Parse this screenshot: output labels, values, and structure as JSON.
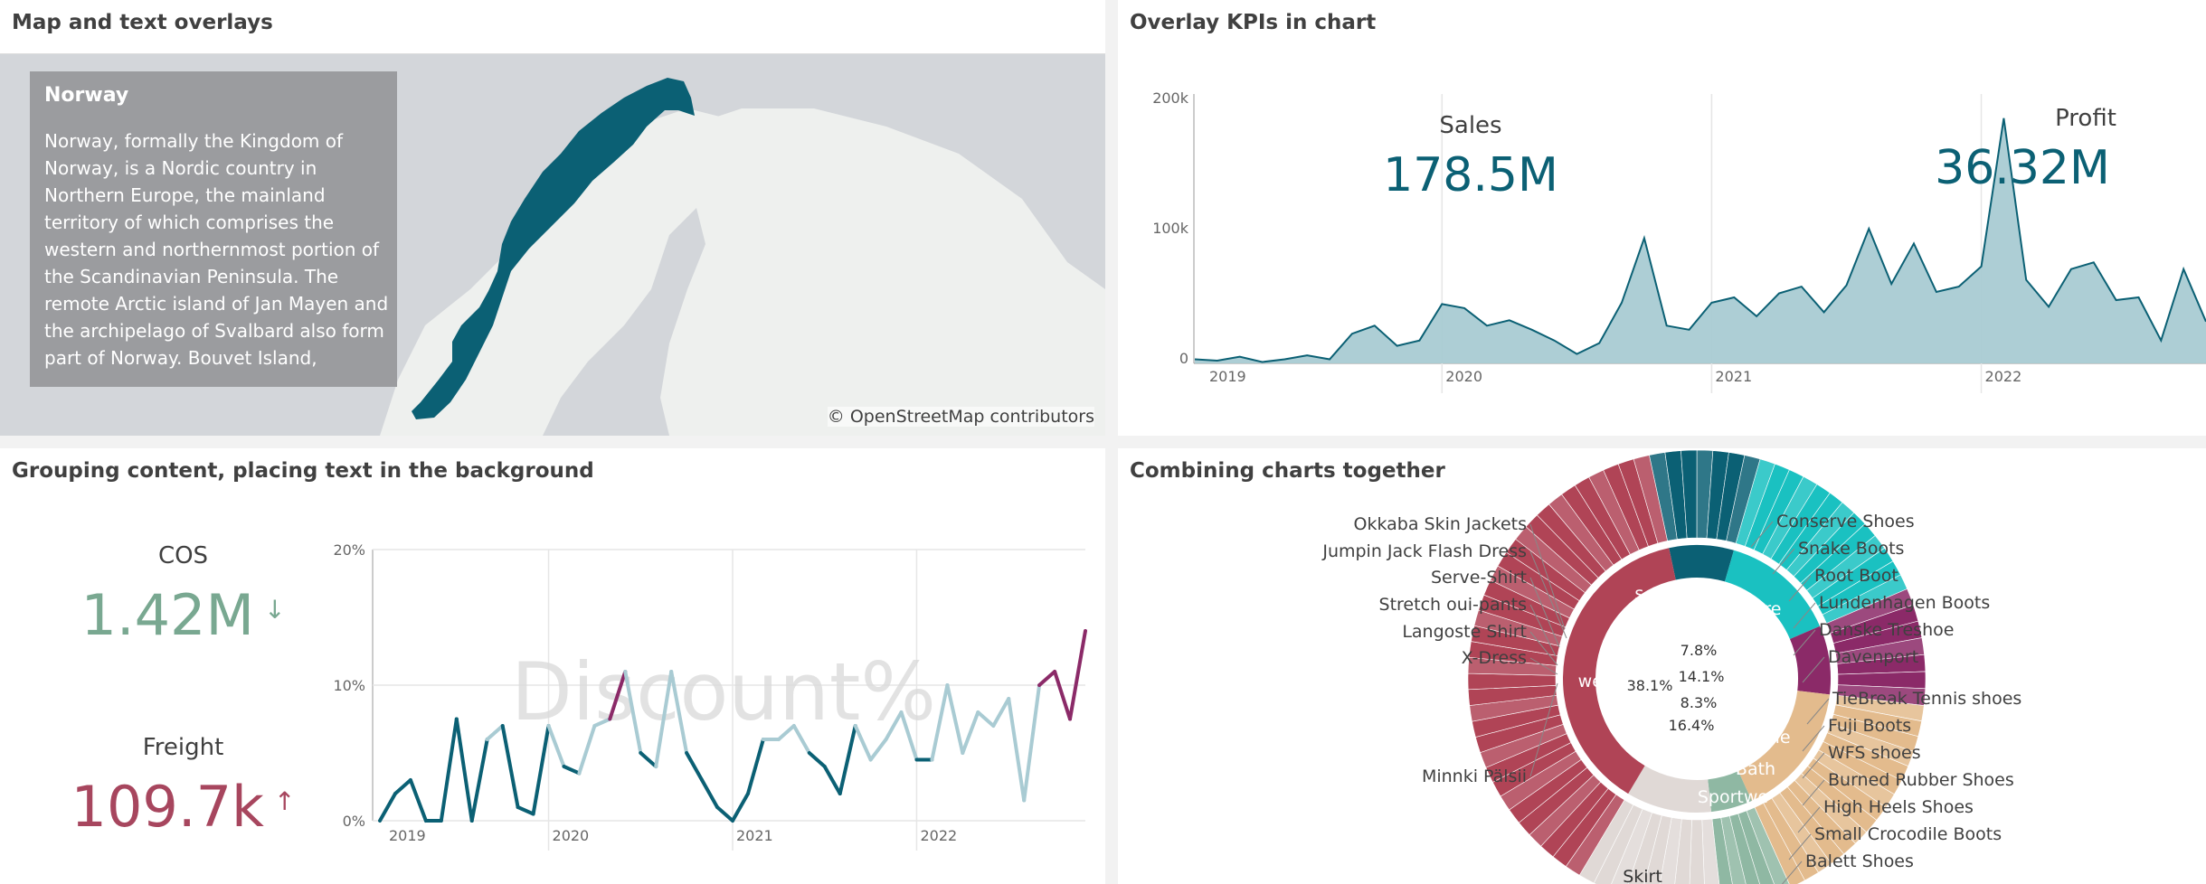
{
  "panels": {
    "map": {
      "title": "Map and text overlays"
    },
    "kpi": {
      "title": "Overlay KPIs in chart"
    },
    "grouping": {
      "title": "Grouping content, placing text in the background"
    },
    "combining": {
      "title": "Combining charts together"
    }
  },
  "map": {
    "tooltip_title": "Norway",
    "tooltip_text": "Norway, formally the Kingdom of Norway, is a Nordic country in Northern Europe, the mainland territory of which comprises the western and northernmost portion of the Scandinavian Peninsula. The remote Arctic island of Jan Mayen and the archipelago of Svalbard also form part of Norway. Bouvet Island,",
    "attribution": "© OpenStreetMap contributors",
    "colors": {
      "land": "#eef0ee",
      "water": "#d3d6da",
      "highlight": "#0b6074",
      "tooltip_bg": "#9b9c9f"
    }
  },
  "kpis": {
    "sales": {
      "label": "Sales",
      "value": "178.5M"
    },
    "profit": {
      "label": "Profit",
      "value": "36.32M"
    },
    "cos": {
      "label": "COS",
      "value": "1.42M",
      "trend": "down",
      "color": "#79a891"
    },
    "freight": {
      "label": "Freight",
      "value": "109.7k",
      "trend": "up",
      "color": "#a7465e"
    }
  },
  "chart_data": [
    {
      "type": "area",
      "y_ticks": [
        "200k",
        "100k",
        "0"
      ],
      "ylim": [
        0,
        200000
      ],
      "x_ticks": [
        "2019",
        "2020",
        "2021",
        "2022"
      ],
      "values": [
        3000,
        2000,
        5000,
        1000,
        3000,
        6000,
        3000,
        22000,
        28000,
        13000,
        17000,
        44000,
        41000,
        28000,
        32000,
        25000,
        17000,
        7000,
        15000,
        45000,
        93000,
        28000,
        25000,
        45000,
        49000,
        35000,
        52000,
        57000,
        38000,
        58000,
        100000,
        59000,
        89000,
        53000,
        57000,
        72000,
        182000,
        62000,
        42000,
        70000,
        75000,
        47000,
        49000,
        17000,
        70000,
        31000
      ],
      "color": "#0b6074",
      "fill": "#a9cbd3"
    },
    {
      "type": "line",
      "background_text": "Discount%",
      "y_ticks": [
        "20%",
        "10%",
        "0%"
      ],
      "ylim": [
        0,
        20
      ],
      "x_ticks": [
        "2019",
        "2020",
        "2021",
        "2022"
      ],
      "values": [
        0,
        2,
        3,
        0,
        0,
        7.5,
        0,
        6,
        7,
        1,
        0.5,
        7,
        4,
        3.5,
        7,
        7.5,
        11,
        5,
        4,
        11,
        5,
        3,
        1,
        0,
        2,
        6,
        6,
        7,
        5,
        4,
        2,
        7,
        4.5,
        6,
        8,
        4.5,
        4.5,
        10,
        5,
        8,
        7,
        9,
        1.5,
        10,
        11,
        7.5,
        14
      ],
      "color_low": "#0b6074",
      "color_mid": "#a9cbd3",
      "color_high": "#8b2a68"
    },
    {
      "type": "pie",
      "inner_ring": [
        {
          "name": "Skirt",
          "percent": 38.1,
          "color": "#b04456"
        },
        {
          "name": "Clothes",
          "percent": 7.8,
          "color": "#0b6074"
        },
        {
          "name": "Children",
          "percent": 14.1,
          "color": "#1ac1c1"
        },
        {
          "name": "Men",
          "percent": 8.3,
          "color": "#8b2a68"
        },
        {
          "name": "Ladies",
          "percent": 16.4,
          "color": "#e3bb8d"
        },
        {
          "name": "Bath",
          "percent": 5.0,
          "color": "#8fb8a3"
        },
        {
          "name": "Sportwear",
          "percent": 10.3,
          "color": "#e0d9d6"
        }
      ],
      "inner_labels": [
        "38.1%",
        "7.8%",
        "14.1%",
        "8.3%",
        "16.4%"
      ],
      "outer_ring_labels": [
        "wear",
        "s Clothes",
        "Childre",
        "Men",
        "Ladie",
        "Bath",
        "Sportwe",
        "Skirt"
      ],
      "left_labels": [
        "Okkaba Skin Jackets",
        "Jumpin Jack Flash Dress",
        "Serve-Shirt",
        "Stretch oui-pants",
        "Langoste Shirt",
        "X-Dress",
        "Minnki Pälsii"
      ],
      "right_labels": [
        "Conserve Shoes",
        "Snake Boots",
        "Root Boot",
        "Lundenhagen Boots",
        "Danske Treshoe",
        "Davenport",
        "TieBreak Tennis shoes",
        "Fuji Boots",
        "WFS shoes",
        "Burned Rubber Shoes",
        "High Heels Shoes",
        "Small Crocodile Boots",
        "Balett Shoes"
      ]
    }
  ]
}
